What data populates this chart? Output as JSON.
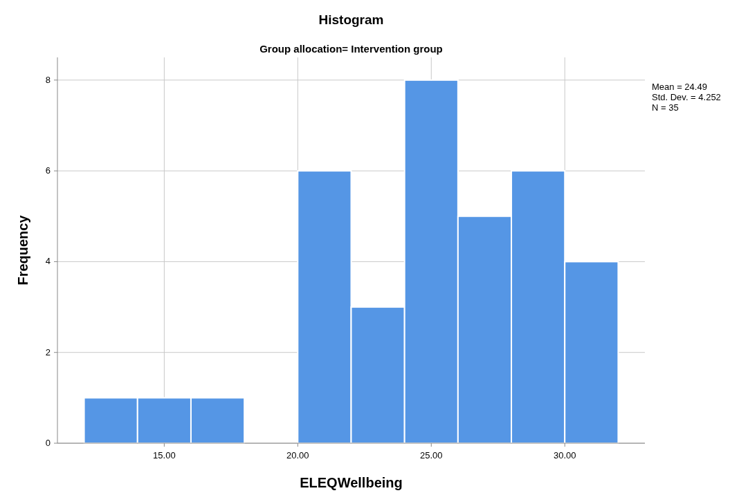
{
  "chart_data": {
    "type": "histogram",
    "title": "Histogram",
    "subtitle": "Group allocation= Intervention group",
    "xlabel": "ELEQWellbeing",
    "ylabel": "Frequency",
    "bins": [
      12,
      14,
      16,
      18,
      20,
      22,
      24,
      26,
      28,
      30,
      32
    ],
    "values": [
      1,
      1,
      1,
      0,
      6,
      3,
      8,
      5,
      6,
      4
    ],
    "color": "#5596e5",
    "xlim": [
      11,
      33
    ],
    "xticks": [
      {
        "value": 15,
        "label": "15.00"
      },
      {
        "value": 20,
        "label": "20.00"
      },
      {
        "value": 25,
        "label": "25.00"
      },
      {
        "value": 30,
        "label": "30.00"
      }
    ],
    "ylim": [
      0,
      8.5
    ],
    "yticks": [
      0,
      2,
      4,
      6,
      8
    ],
    "grid": true,
    "annotations": [
      "Mean = 24.49",
      "Std. Dev. = 4.252",
      "N = 35"
    ]
  }
}
